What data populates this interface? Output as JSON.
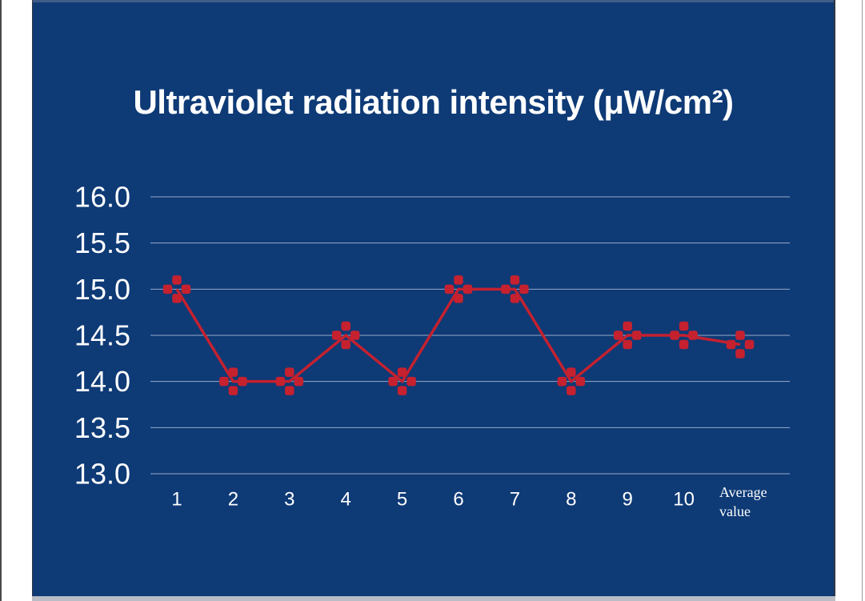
{
  "panel": {
    "background": "#0e3a76",
    "top_edge_color": "#3f5c88",
    "bottom_strip_color": "#b9bdc5"
  },
  "chart_data": {
    "type": "line",
    "title": "Ultraviolet radiation intensity (μW/cm²)",
    "categories": [
      "1",
      "2",
      "3",
      "4",
      "5",
      "6",
      "7",
      "8",
      "9",
      "10",
      "Average value"
    ],
    "values": [
      15.0,
      14.0,
      14.0,
      14.5,
      14.0,
      15.0,
      15.0,
      14.0,
      14.5,
      14.5,
      14.4
    ],
    "xlabel": "",
    "ylabel": "",
    "ylim": [
      13.0,
      16.0
    ],
    "ytick_labels": [
      "16.0",
      "15.5",
      "15.0",
      "14.5",
      "14.0",
      "13.5",
      "13.0"
    ],
    "grid": true,
    "legend": false,
    "marker_style": "plus",
    "colors": {
      "series": "#c5212f",
      "grid": "#98abc6",
      "text": "#ffffff"
    }
  }
}
